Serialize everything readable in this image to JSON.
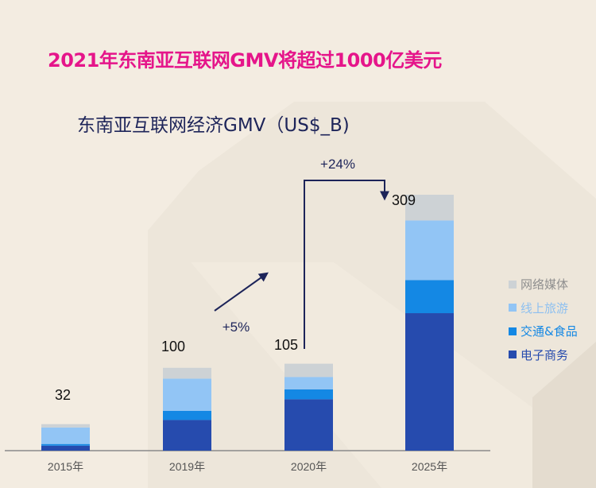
{
  "title": "2021年东南亚互联网GMV将超过1000亿美元",
  "subtitle": "东南亚互联网经济GMV（US$_B)",
  "colors": {
    "title": "#e5158a",
    "subtitle": "#1d2459",
    "background": "#f3ece1",
    "arrow": "#1d2459"
  },
  "chart_data": {
    "type": "bar",
    "stacked": true,
    "title": "东南亚互联网经济GMV（US$_B)",
    "categories": [
      "2015年",
      "2019年",
      "2020年",
      "2025年"
    ],
    "totals": [
      32,
      100,
      105,
      309
    ],
    "series": [
      {
        "name": "电子商务",
        "color": "#264bae",
        "values": [
          6,
          37,
          62,
          166
        ]
      },
      {
        "name": "交通&食品",
        "color": "#1488e4",
        "values": [
          2,
          11,
          12,
          40
        ]
      },
      {
        "name": "线上旅游",
        "color": "#92c5f5",
        "values": [
          20,
          39,
          15,
          72
        ]
      },
      {
        "name": "网络媒体",
        "color": "#cdd2d5",
        "values": [
          4,
          13,
          16,
          31
        ]
      }
    ],
    "legend_order": [
      "网络媒体",
      "线上旅游",
      "交通&食品",
      "电子商务"
    ],
    "legend_placement": "right",
    "annotations": [
      {
        "text": "+5%",
        "from": "2019年",
        "to": "2020年"
      },
      {
        "text": "+24%",
        "from": "2020年",
        "to": "2025年"
      }
    ],
    "ylim": [
      0,
      309
    ],
    "grid": false,
    "xlabel": "",
    "ylabel": ""
  }
}
